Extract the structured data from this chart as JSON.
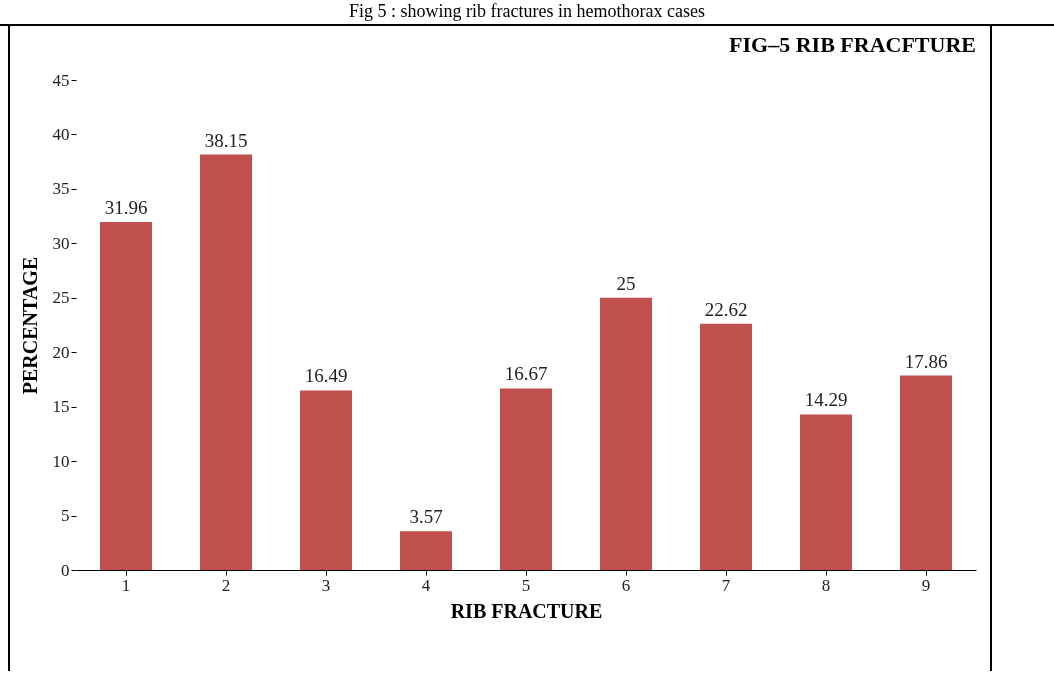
{
  "chart_data": {
    "type": "bar",
    "title": "FIG–5 RIB FRACFTURE",
    "xlabel": "RIB FRACTURE",
    "ylabel": "PERCENTAGE",
    "annotations": [
      "Fig 5 : showing rib fractures in hemothorax cases"
    ],
    "categories": [
      "1",
      "2",
      "3",
      "4",
      "5",
      "6",
      "7",
      "8",
      "9"
    ],
    "values": [
      31.96,
      38.15,
      16.49,
      3.57,
      16.67,
      25,
      22.62,
      14.29,
      17.86
    ],
    "color": "#c0504d",
    "ylim": [
      0,
      45
    ],
    "yticks": [
      0,
      5,
      10,
      15,
      20,
      25,
      30,
      35,
      40,
      45
    ],
    "grid": false,
    "data_labels": true
  }
}
